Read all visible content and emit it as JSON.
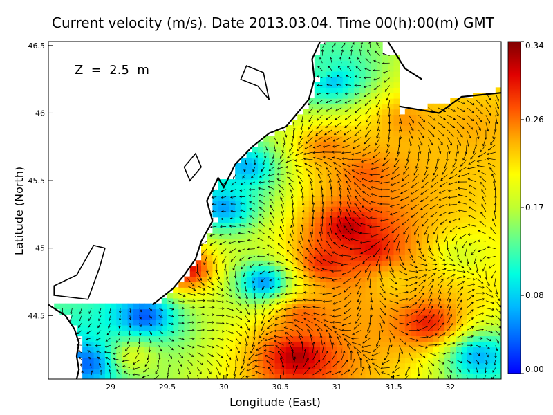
{
  "chart_data": {
    "type": "heatmap",
    "title": "Current velocity (m/s). Date 2013.03.04. Time 00(h):00(m) GMT",
    "annotation": "Z  =  2.5  m",
    "xlabel": "Longitude (East)",
    "ylabel": "Latitude (North)",
    "xlim": [
      28.45,
      32.45
    ],
    "ylim": [
      44.03,
      46.53
    ],
    "x_ticks": [
      {
        "value": 29,
        "label": "29"
      },
      {
        "value": 29.5,
        "label": "29.5"
      },
      {
        "value": 30,
        "label": "30"
      },
      {
        "value": 30.5,
        "label": "30.5"
      },
      {
        "value": 31,
        "label": "31"
      },
      {
        "value": 31.5,
        "label": "31.5"
      },
      {
        "value": 32,
        "label": "32"
      }
    ],
    "y_ticks": [
      {
        "value": 44.5,
        "label": "44.5"
      },
      {
        "value": 45,
        "label": "45"
      },
      {
        "value": 45.5,
        "label": "45.5"
      },
      {
        "value": 46,
        "label": "46"
      },
      {
        "value": 46.5,
        "label": "46.5"
      }
    ],
    "colorbar": {
      "min": 0.0,
      "max": 0.34,
      "ticks": [
        {
          "value": 0.0,
          "label": "0.00"
        },
        {
          "value": 0.08,
          "label": "0.08"
        },
        {
          "value": 0.17,
          "label": "0.17"
        },
        {
          "value": 0.26,
          "label": "0.26"
        },
        {
          "value": 0.34,
          "label": "0.34"
        }
      ],
      "colors": [
        "#0000ff",
        "#0060ff",
        "#00b8ff",
        "#00ffe0",
        "#60ff90",
        "#c0ff30",
        "#ffff00",
        "#ffb000",
        "#ff5000",
        "#e00000",
        "#800000"
      ],
      "placement": "right"
    },
    "speed_hotspots": [
      {
        "lon": 31.1,
        "lat": 45.15,
        "speed": 0.33
      },
      {
        "lon": 31.3,
        "lat": 45.0,
        "speed": 0.31
      },
      {
        "lon": 30.9,
        "lat": 44.9,
        "speed": 0.3
      },
      {
        "lon": 30.65,
        "lat": 44.2,
        "speed": 0.33
      },
      {
        "lon": 30.7,
        "lat": 44.5,
        "speed": 0.27
      },
      {
        "lon": 31.8,
        "lat": 44.45,
        "speed": 0.3
      },
      {
        "lon": 31.25,
        "lat": 45.55,
        "speed": 0.27
      },
      {
        "lon": 30.9,
        "lat": 45.75,
        "speed": 0.26
      },
      {
        "lon": 32.2,
        "lat": 45.9,
        "speed": 0.24
      },
      {
        "lon": 31.6,
        "lat": 45.95,
        "speed": 0.25
      },
      {
        "lon": 29.2,
        "lat": 44.2,
        "speed": 0.19
      },
      {
        "lon": 29.65,
        "lat": 44.85,
        "speed": 0.32
      },
      {
        "lon": 31.5,
        "lat": 44.75,
        "speed": 0.22
      },
      {
        "lon": 32.1,
        "lat": 44.95,
        "speed": 0.18
      },
      {
        "lon": 30.9,
        "lat": 46.3,
        "speed": 0.14
      }
    ],
    "speed_lowspots": [
      {
        "lon": 30.0,
        "lat": 45.3,
        "speed": 0.05
      },
      {
        "lon": 29.3,
        "lat": 44.5,
        "speed": 0.02
      },
      {
        "lon": 30.35,
        "lat": 44.75,
        "speed": 0.04
      },
      {
        "lon": 30.95,
        "lat": 46.25,
        "speed": 0.05
      },
      {
        "lon": 32.25,
        "lat": 44.2,
        "speed": 0.06
      },
      {
        "lon": 30.2,
        "lat": 45.6,
        "speed": 0.06
      },
      {
        "lon": 28.8,
        "lat": 44.15,
        "speed": 0.03
      }
    ],
    "coastline": [
      [
        28.45,
        44.58
      ],
      [
        28.6,
        44.5
      ],
      [
        28.68,
        44.4
      ],
      [
        28.72,
        44.3
      ],
      [
        28.7,
        44.2
      ],
      [
        28.72,
        44.1
      ],
      [
        28.7,
        44.03
      ]
    ],
    "coastline_north": [
      [
        29.37,
        44.58
      ],
      [
        29.55,
        44.7
      ],
      [
        29.65,
        44.8
      ],
      [
        29.75,
        44.92
      ],
      [
        29.8,
        45.05
      ],
      [
        29.9,
        45.2
      ],
      [
        29.85,
        45.35
      ],
      [
        29.95,
        45.52
      ],
      [
        30.0,
        45.45
      ],
      [
        30.1,
        45.62
      ],
      [
        30.25,
        45.75
      ],
      [
        30.4,
        45.85
      ],
      [
        30.55,
        45.9
      ],
      [
        30.65,
        46.0
      ],
      [
        30.75,
        46.1
      ],
      [
        30.8,
        46.25
      ],
      [
        30.78,
        46.4
      ],
      [
        30.85,
        46.53
      ]
    ],
    "land_lakes": [
      [
        [
          28.5,
          44.65
        ],
        [
          28.8,
          44.62
        ],
        [
          28.9,
          44.85
        ],
        [
          28.95,
          45.0
        ],
        [
          28.85,
          45.02
        ],
        [
          28.7,
          44.8
        ],
        [
          28.5,
          44.72
        ]
      ],
      [
        [
          29.65,
          45.6
        ],
        [
          29.75,
          45.7
        ],
        [
          29.8,
          45.6
        ],
        [
          29.7,
          45.5
        ]
      ],
      [
        [
          30.2,
          46.35
        ],
        [
          30.35,
          46.3
        ],
        [
          30.4,
          46.1
        ],
        [
          30.3,
          46.2
        ],
        [
          30.15,
          46.25
        ]
      ]
    ]
  }
}
